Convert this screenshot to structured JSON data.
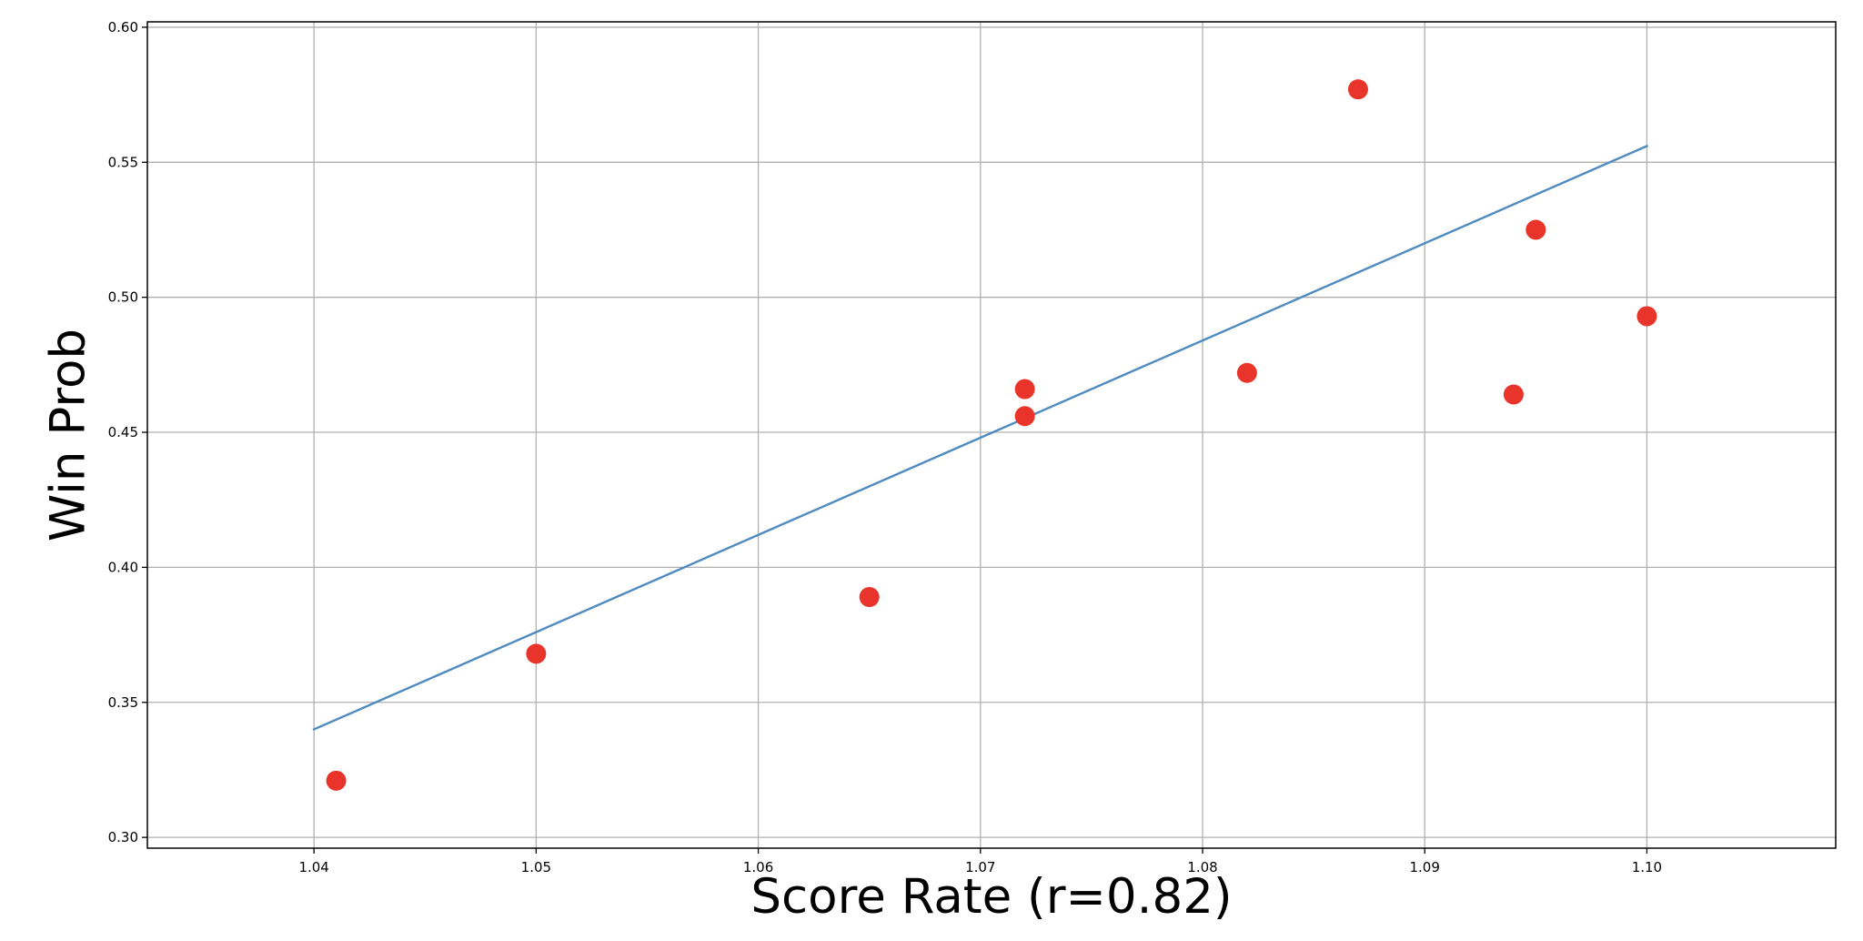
{
  "chart_data": {
    "type": "scatter",
    "title": "",
    "xlabel": "Score Rate (r=0.82)",
    "ylabel": "Win Prob",
    "xlim": [
      1.0325,
      1.1085
    ],
    "ylim": [
      0.296,
      0.602
    ],
    "xticks": [
      1.04,
      1.05,
      1.06,
      1.07,
      1.08,
      1.09,
      1.1
    ],
    "xtick_labels": [
      "1.04",
      "1.05",
      "1.06",
      "1.07",
      "1.08",
      "1.09",
      "1.10"
    ],
    "yticks": [
      0.3,
      0.35,
      0.4,
      0.45,
      0.5,
      0.55,
      0.6
    ],
    "ytick_labels": [
      "0.30",
      "0.35",
      "0.40",
      "0.45",
      "0.50",
      "0.55",
      "0.60"
    ],
    "grid": true,
    "legend": "none",
    "points": {
      "x": [
        1.041,
        1.05,
        1.065,
        1.072,
        1.072,
        1.082,
        1.087,
        1.094,
        1.095,
        1.1
      ],
      "y": [
        0.321,
        0.368,
        0.389,
        0.456,
        0.466,
        0.472,
        0.577,
        0.464,
        0.525,
        0.493
      ],
      "color": "#e8342a"
    },
    "fit_line": {
      "x": [
        1.04,
        1.1
      ],
      "y": [
        0.34,
        0.556
      ],
      "color": "#4f8bbf"
    }
  }
}
